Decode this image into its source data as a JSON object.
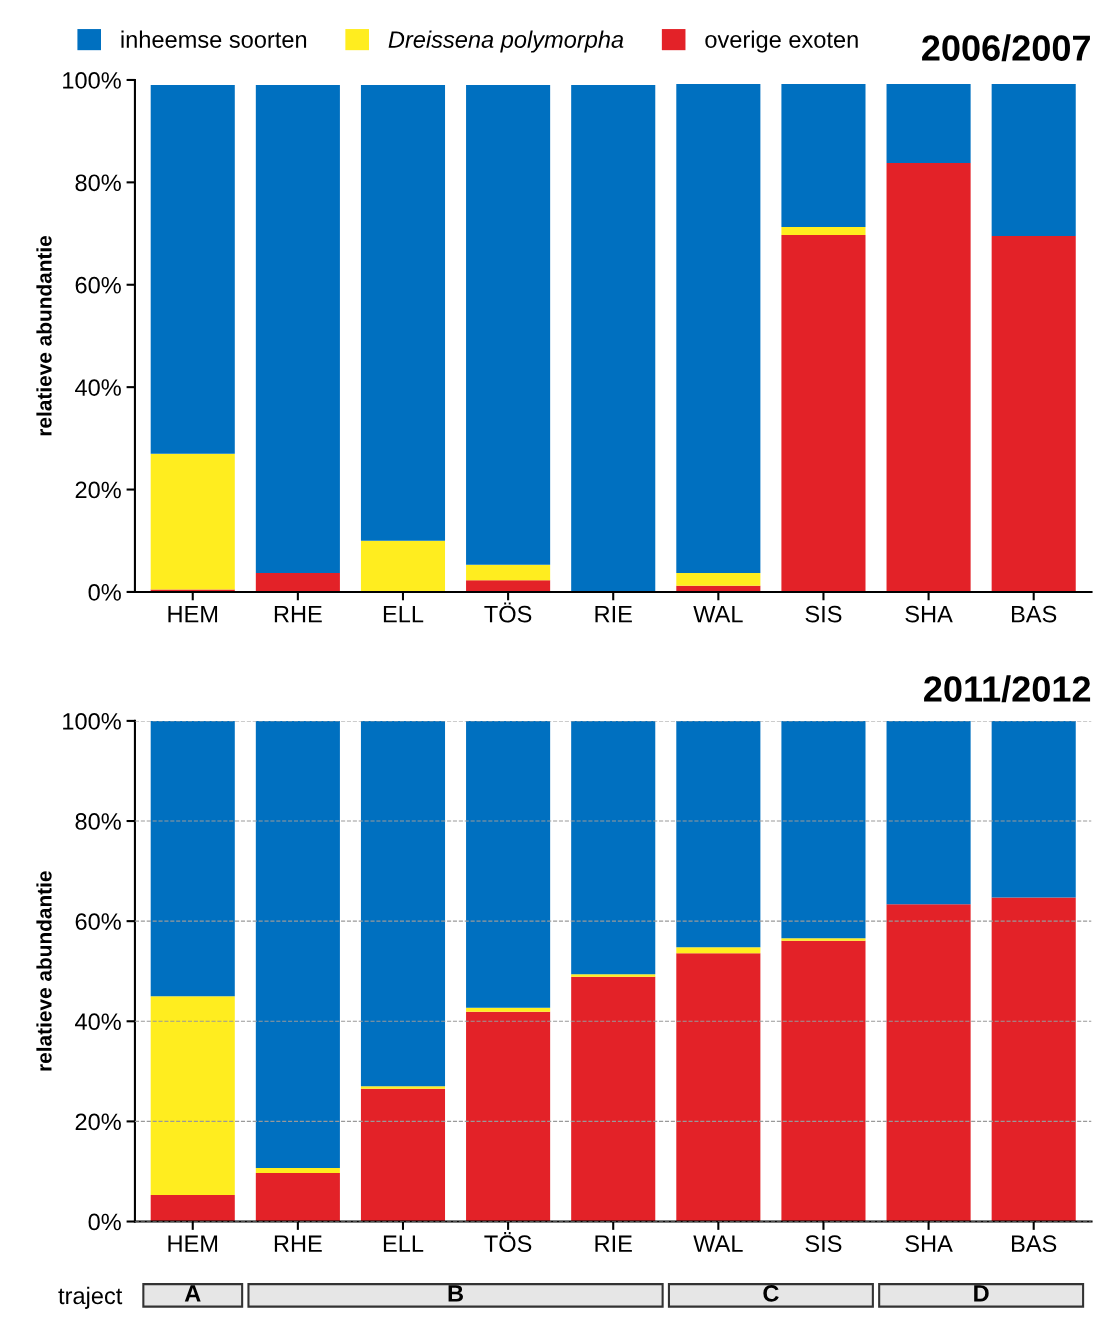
{
  "chart_data": [
    {
      "type": "bar",
      "stacked": true,
      "title": "2006/2007",
      "ylabel": "relatieve abundantie",
      "categories": [
        "HEM",
        "RHE",
        "ELL",
        "TÖS",
        "RIE",
        "WAL",
        "SIS",
        "SHA",
        "BAS"
      ],
      "series": [
        {
          "name": "overige exoten",
          "color": "#e32228",
          "values": [
            0.5,
            3.7,
            0,
            2.3,
            0,
            1.2,
            69.7,
            83.8,
            69.5
          ]
        },
        {
          "name": "Dreissena polymorpha",
          "color": "#ffed1f",
          "values": [
            26.5,
            0,
            10,
            3,
            0,
            2.5,
            1.6,
            0,
            0
          ]
        },
        {
          "name": "inheemse soorten",
          "color": "#0070c0",
          "values": [
            72,
            95.3,
            89,
            93.7,
            99,
            95.5,
            27.9,
            15.4,
            29.7
          ]
        }
      ],
      "ylim": [
        0,
        100
      ],
      "yticks": [
        {
          "value": 0,
          "label": "0%"
        },
        {
          "value": 20,
          "label": "20%"
        },
        {
          "value": 40,
          "label": "40%"
        },
        {
          "value": 60,
          "label": "60%"
        },
        {
          "value": 80,
          "label": "80%"
        },
        {
          "value": 100,
          "label": "100%"
        }
      ],
      "grid": false,
      "legend": "top left"
    },
    {
      "type": "bar",
      "stacked": true,
      "title": "2011/2012",
      "ylabel": "relatieve abundantie",
      "categories": [
        "HEM",
        "RHE",
        "ELL",
        "TÖS",
        "RIE",
        "WAL",
        "SIS",
        "SHA",
        "BAS"
      ],
      "series": [
        {
          "color": "#e32228",
          "values": [
            5.3,
            9.7,
            26.5,
            41.9,
            48.9,
            53.6,
            56.1,
            63.4,
            64.7
          ]
        },
        {
          "color": "#ffed1f",
          "values": [
            39.7,
            1,
            0.5,
            0.8,
            0.5,
            1.2,
            0.5,
            0,
            0
          ]
        },
        {
          "color": "#0070c0",
          "values": [
            55,
            89.3,
            73,
            57.3,
            50.6,
            45.2,
            43.4,
            36.6,
            35.3
          ]
        }
      ],
      "ylim": [
        0,
        100
      ],
      "yticks": [
        {
          "value": 0,
          "label": "0%"
        },
        {
          "value": 20,
          "label": "20%"
        },
        {
          "value": 40,
          "label": "40%"
        },
        {
          "value": 60,
          "label": "60%"
        },
        {
          "value": 80,
          "label": "80%"
        },
        {
          "value": 100,
          "label": "100%"
        }
      ],
      "grid": "y",
      "annotations": [
        "traject",
        "A",
        "B",
        "C",
        "D"
      ]
    }
  ]
}
